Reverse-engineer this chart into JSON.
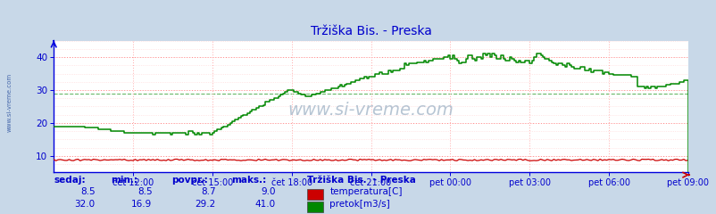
{
  "title": "Tržiška Bis. - Preska",
  "title_color": "#0000cc",
  "bg_color": "#c8d8e8",
  "plot_bg_color": "#ffffff",
  "grid_color_h": "#ff8888",
  "grid_color_v": "#ffbbbb",
  "grid_dashed_color": "#008800",
  "spine_color": "#0000dd",
  "arrow_color": "#cc0000",
  "x_tick_labels": [
    "čet 12:00",
    "čet 15:00",
    "čet 18:00",
    "čet 21:00",
    "pet 00:00",
    "pet 03:00",
    "pet 06:00",
    "pet 09:00"
  ],
  "x_tick_positions": [
    36,
    72,
    108,
    144,
    180,
    216,
    252,
    288
  ],
  "y_ticks": [
    10,
    20,
    30,
    40
  ],
  "ylim": [
    5,
    45
  ],
  "xlim": [
    0,
    288
  ],
  "temp_color": "#cc0000",
  "flow_color": "#008800",
  "watermark": "www.si-vreme.com",
  "label_color": "#0000cc",
  "legend_title": "Tržiška Bis.  - Preska",
  "stats_headers": [
    "sedaj:",
    "min.:",
    "povpr.:",
    "maks.:"
  ],
  "temp_stats": [
    8.5,
    8.5,
    8.7,
    9.0
  ],
  "flow_stats": [
    32.0,
    16.9,
    29.2,
    41.0
  ],
  "temp_label": "temperatura[C]",
  "flow_label": "pretok[m3/s]",
  "sidebar_text": "www.si-vreme.com",
  "sidebar_color": "#4466aa"
}
